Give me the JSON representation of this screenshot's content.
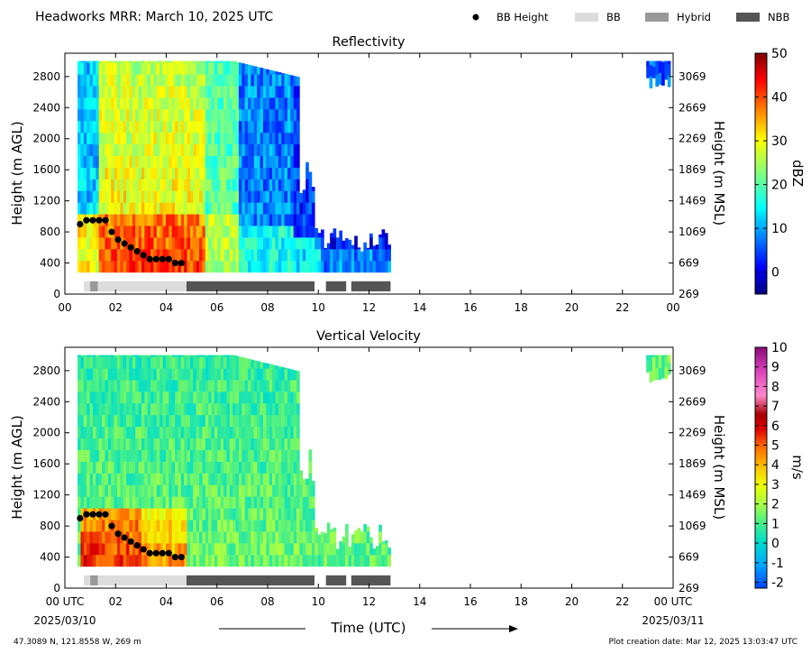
{
  "header": {
    "title": "Headworks MRR:  March 10, 2025 UTC",
    "legend": [
      {
        "marker": "dot",
        "label": "BB Height",
        "color": "#000000"
      },
      {
        "marker": "swatch",
        "label": "BB",
        "color": "#dcdcdc"
      },
      {
        "marker": "swatch",
        "label": "Hybrid",
        "color": "#999999"
      },
      {
        "marker": "swatch",
        "label": "NBB",
        "color": "#555555"
      }
    ]
  },
  "footer": {
    "location": "47.3089 N, 121.8558 W, 269 m",
    "creation": "Plot creation date: Mar 12, 2025 13:03:47 UTC",
    "time_label": "Time (UTC)",
    "start_date": "2025/03/10",
    "end_date": "2025/03/11"
  },
  "chart_data": [
    {
      "type": "heatmap",
      "title": "Reflectivity",
      "ylabel": "Height (m AGL)",
      "ylabel_right": "Height (m MSL)",
      "colorbar_label": "dBZ",
      "colorbar_range": [
        -5,
        50
      ],
      "colorbar_ticks": [
        "0",
        "10",
        "20",
        "30",
        "40",
        "50"
      ],
      "xlim": [
        0,
        24
      ],
      "ylim": [
        0,
        3100
      ],
      "x_ticks": [
        "00",
        "02",
        "04",
        "06",
        "08",
        "10",
        "12",
        "14",
        "16",
        "18",
        "20",
        "22",
        "00"
      ],
      "y_ticks": [
        "0",
        "400",
        "800",
        "1200",
        "1600",
        "2000",
        "2400",
        "2800"
      ],
      "y_ticks_right": [
        "269",
        "669",
        "1069",
        "1469",
        "1869",
        "2269",
        "2669",
        "3069"
      ],
      "bb_height": {
        "x": [
          0.6,
          0.85,
          1.1,
          1.35,
          1.6,
          1.85,
          2.1,
          2.35,
          2.6,
          2.85,
          3.1,
          3.35,
          3.6,
          3.85,
          4.1,
          4.35,
          4.6
        ],
        "y": [
          900,
          950,
          950,
          950,
          950,
          800,
          700,
          650,
          600,
          550,
          500,
          450,
          450,
          450,
          450,
          400,
          400
        ]
      },
      "bb_type_segments": [
        {
          "type": "BB",
          "start": 0.75,
          "end": 1.0
        },
        {
          "type": "Hybrid",
          "start": 1.0,
          "end": 1.3
        },
        {
          "type": "BB",
          "start": 1.3,
          "end": 4.8
        },
        {
          "type": "NBB",
          "start": 4.8,
          "end": 9.85
        },
        {
          "type": "NBB",
          "start": 10.3,
          "end": 11.1
        },
        {
          "type": "NBB",
          "start": 11.3,
          "end": 12.85
        }
      ],
      "grid": false
    },
    {
      "type": "heatmap",
      "title": "Vertical Velocity",
      "ylabel": "Height (m AGL)",
      "ylabel_right": "Height (m MSL)",
      "colorbar_label": "m/s",
      "colorbar_range": [
        -2.3,
        10
      ],
      "colorbar_ticks": [
        "-2",
        "-1",
        "0",
        "1",
        "2",
        "3",
        "4",
        "5",
        "6",
        "7",
        "8",
        "9",
        "10"
      ],
      "xlim": [
        0,
        24
      ],
      "ylim": [
        0,
        3100
      ],
      "x_ticks": [
        "00 UTC",
        "02",
        "04",
        "06",
        "08",
        "10",
        "12",
        "14",
        "16",
        "18",
        "20",
        "22",
        "00 UTC"
      ],
      "y_ticks": [
        "0",
        "400",
        "800",
        "1200",
        "1600",
        "2000",
        "2400",
        "2800"
      ],
      "y_ticks_right": [
        "269",
        "669",
        "1069",
        "1469",
        "1869",
        "2269",
        "2669",
        "3069"
      ],
      "bb_height": {
        "x": [
          0.6,
          0.85,
          1.1,
          1.35,
          1.6,
          1.85,
          2.1,
          2.35,
          2.6,
          2.85,
          3.1,
          3.35,
          3.6,
          3.85,
          4.1,
          4.35,
          4.6
        ],
        "y": [
          900,
          950,
          950,
          950,
          950,
          800,
          700,
          650,
          600,
          550,
          500,
          450,
          450,
          450,
          450,
          400,
          400
        ]
      },
      "bb_type_segments": [
        {
          "type": "BB",
          "start": 0.75,
          "end": 1.0
        },
        {
          "type": "Hybrid",
          "start": 1.0,
          "end": 1.3
        },
        {
          "type": "BB",
          "start": 1.3,
          "end": 4.8
        },
        {
          "type": "NBB",
          "start": 4.8,
          "end": 9.85
        },
        {
          "type": "NBB",
          "start": 10.3,
          "end": 11.1
        },
        {
          "type": "NBB",
          "start": 11.3,
          "end": 12.85
        }
      ],
      "grid": false
    }
  ]
}
